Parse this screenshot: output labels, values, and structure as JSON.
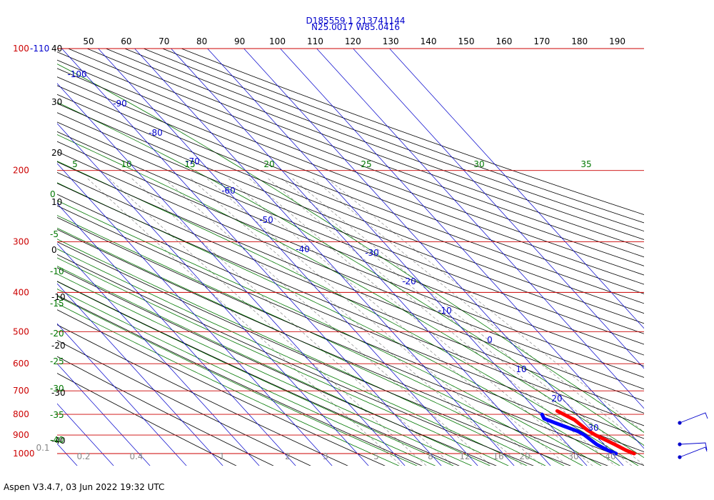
{
  "header": {
    "line1": "D185559.1 213741144",
    "line2": "N25.0017 W85.0416"
  },
  "footer": "Aspen V3.4.7, 03 Jun 2022  19:32 UTC",
  "colors": {
    "isobar": "#cc0000",
    "isotherm": "#0000cc",
    "dry_adiabat": "#000000",
    "moist_adiabat": "#007700",
    "mixing_ratio": "#888888",
    "temperature": "#ff0000",
    "dewpoint": "#0000ff"
  },
  "chart_data": {
    "type": "skew-t",
    "top_axis_labels": [
      "50",
      "60",
      "70",
      "80",
      "90",
      "100",
      "110",
      "120",
      "130",
      "140",
      "150",
      "160",
      "170",
      "180",
      "190"
    ],
    "pressure_labels": [
      "100",
      "200",
      "300",
      "400",
      "500",
      "600",
      "700",
      "800",
      "900",
      "1000"
    ],
    "top_left_label": "-110",
    "top_left_left_label": "40",
    "left_black_labels": [
      "30",
      "20",
      "10",
      "0",
      "-10",
      "-20",
      "-30",
      "-40"
    ],
    "left_green_labels": [
      "0",
      "-5",
      "-10",
      "-15",
      "-20",
      "-25",
      "-30",
      "-35",
      "-40"
    ],
    "moist_labels_top": [
      "5",
      "10",
      "15",
      "20",
      "25",
      "30",
      "35"
    ],
    "isotherm_labels": [
      "-100",
      "-90",
      "-80",
      "-70",
      "-60",
      "-50",
      "-40",
      "-30",
      "-20",
      "-10",
      "0",
      "10",
      "20",
      "30"
    ],
    "mixing_ratio_labels": [
      "0.1",
      "0.2",
      "0.4",
      "1",
      "2",
      "3",
      "5",
      "8",
      "12",
      "16",
      "20",
      "30",
      "40"
    ],
    "temperature_profile": [
      {
        "p": 1000,
        "t": 26.0
      },
      {
        "p": 980,
        "t": 24.5
      },
      {
        "p": 950,
        "t": 23.0
      },
      {
        "p": 925,
        "t": 21.5
      },
      {
        "p": 900,
        "t": 20.0
      },
      {
        "p": 875,
        "t": 19.0
      },
      {
        "p": 850,
        "t": 18.5
      },
      {
        "p": 825,
        "t": 18.0
      },
      {
        "p": 800,
        "t": 16.5
      },
      {
        "p": 785,
        "t": 15.5
      }
    ],
    "dewpoint_profile": [
      {
        "p": 1000,
        "td": 21.0
      },
      {
        "p": 980,
        "td": 19.5
      },
      {
        "p": 950,
        "td": 18.0
      },
      {
        "p": 925,
        "td": 17.5
      },
      {
        "p": 900,
        "td": 17.0
      },
      {
        "p": 880,
        "td": 16.0
      },
      {
        "p": 860,
        "td": 14.0
      },
      {
        "p": 840,
        "td": 12.0
      },
      {
        "p": 820,
        "td": 10.0
      },
      {
        "p": 800,
        "td": 10.5
      }
    ]
  }
}
